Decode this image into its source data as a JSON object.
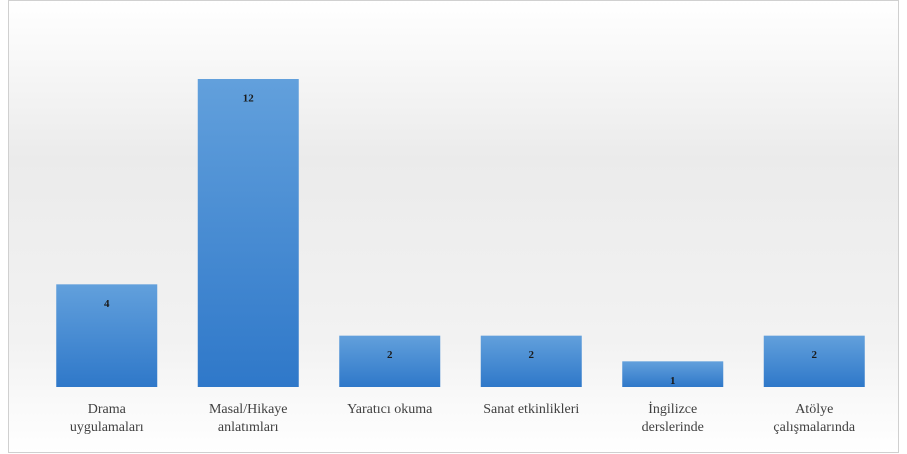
{
  "chart_data": {
    "type": "bar",
    "categories": [
      [
        "Drama",
        "uygulamaları"
      ],
      [
        "Masal/Hikaye",
        "anlatımları"
      ],
      [
        "Yaratıcı okuma"
      ],
      [
        "Sanat etkinlikleri"
      ],
      [
        "İngilizce",
        "derslerinde"
      ],
      [
        "Atölye",
        "çalışmalarında"
      ]
    ],
    "values": [
      4,
      12,
      2,
      2,
      1,
      2
    ],
    "color": "#4a8dd6"
  }
}
